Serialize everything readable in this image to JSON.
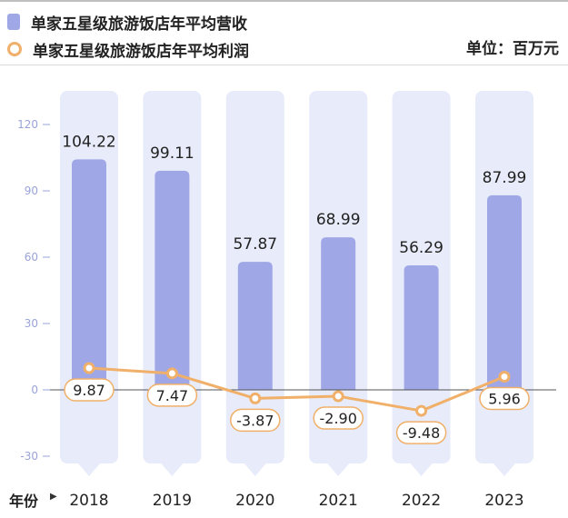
{
  "legend": {
    "revenue_label": "单家五星级旅游饭店年平均营收",
    "profit_label": "单家五星级旅游饭店年平均利润",
    "unit_label": "单位：百万元"
  },
  "colors": {
    "bar": "#9fa7e6",
    "bar_background": "#e8ecfa",
    "line": "#f0b06a",
    "axis_tick": "#9aa3d8"
  },
  "chart_data": {
    "type": "bar",
    "categories": [
      "2018",
      "2019",
      "2020",
      "2021",
      "2022",
      "2023"
    ],
    "series": [
      {
        "name": "单家五星级旅游饭店年平均营收",
        "type": "bar",
        "values": [
          104.22,
          99.11,
          57.87,
          68.99,
          56.29,
          87.99
        ]
      },
      {
        "name": "单家五星级旅游饭店年平均利润",
        "type": "line",
        "values": [
          9.87,
          7.47,
          -3.87,
          -2.9,
          -9.48,
          5.96
        ]
      }
    ],
    "xlabel": "年份",
    "ylabel": "",
    "ylim": [
      -30,
      120
    ],
    "yticks": [
      -30,
      0,
      30,
      60,
      90,
      120
    ],
    "revenue_labels": [
      "104.22",
      "99.11",
      "57.87",
      "68.99",
      "56.29",
      "87.99"
    ],
    "profit_labels": [
      "9.87",
      "7.47",
      "-3.87",
      "-2.90",
      "-9.48",
      "5.96"
    ],
    "grid": false
  }
}
